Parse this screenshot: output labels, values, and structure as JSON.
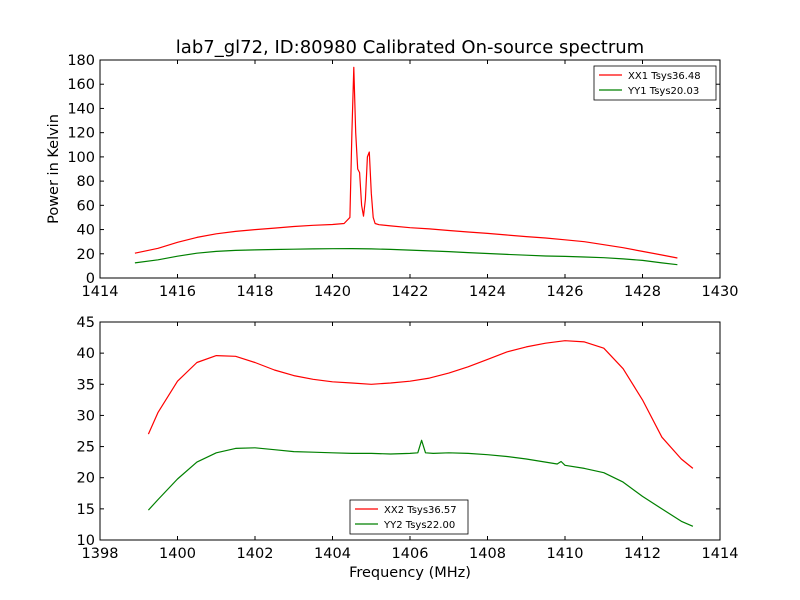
{
  "figure_title": "lab7_gl72, ID:80980 Calibrated On-source spectrum",
  "chart_data": [
    {
      "type": "line",
      "title": "lab7_gl72, ID:80980 Calibrated On-source spectrum",
      "xlabel": "",
      "ylabel": "Power in Kelvin",
      "xlim": [
        1414,
        1430
      ],
      "ylim": [
        0,
        180
      ],
      "xticks": [
        "1414",
        "1416",
        "1418",
        "1420",
        "1422",
        "1424",
        "1426",
        "1428",
        "1430"
      ],
      "yticks": [
        "0",
        "20",
        "40",
        "60",
        "80",
        "100",
        "120",
        "140",
        "160",
        "180"
      ],
      "grid": false,
      "legend_position": "top-right",
      "series": [
        {
          "name": "XX1 Tsys36.48",
          "color": "#ff0000",
          "x": [
            1414.9,
            1415.5,
            1416.0,
            1416.5,
            1417.0,
            1417.5,
            1418.0,
            1418.5,
            1419.0,
            1419.5,
            1420.0,
            1420.3,
            1420.45,
            1420.5,
            1420.55,
            1420.6,
            1420.65,
            1420.7,
            1420.75,
            1420.8,
            1420.85,
            1420.9,
            1420.95,
            1421.0,
            1421.05,
            1421.1,
            1421.2,
            1421.5,
            1422.0,
            1422.5,
            1423.0,
            1423.5,
            1424.0,
            1424.5,
            1425.0,
            1425.5,
            1426.0,
            1426.5,
            1427.0,
            1427.5,
            1428.0,
            1428.5,
            1428.9
          ],
          "y": [
            20.5,
            24.5,
            29.5,
            33.5,
            36.5,
            38.5,
            40.0,
            41.2,
            42.5,
            43.5,
            44.2,
            45.0,
            50.0,
            120.0,
            174.0,
            120.0,
            90.0,
            87.0,
            60.0,
            51.0,
            65.0,
            100.0,
            104.0,
            70.0,
            50.0,
            45.0,
            44.0,
            43.0,
            41.5,
            40.5,
            39.2,
            38.0,
            36.8,
            35.5,
            34.2,
            33.0,
            31.5,
            30.0,
            27.5,
            25.0,
            22.0,
            19.0,
            16.5
          ]
        },
        {
          "name": "YY1 Tsys20.03",
          "color": "#008000",
          "x": [
            1414.9,
            1415.5,
            1416.0,
            1416.5,
            1417.0,
            1417.5,
            1418.0,
            1418.5,
            1419.0,
            1419.5,
            1420.0,
            1420.5,
            1421.0,
            1421.5,
            1422.0,
            1422.5,
            1423.0,
            1423.5,
            1424.0,
            1424.5,
            1425.0,
            1425.5,
            1426.0,
            1426.5,
            1427.0,
            1427.5,
            1428.0,
            1428.5,
            1428.9
          ],
          "y": [
            12.5,
            15.0,
            18.0,
            20.5,
            22.0,
            22.8,
            23.2,
            23.5,
            23.8,
            24.0,
            24.2,
            24.3,
            24.0,
            23.6,
            23.0,
            22.4,
            21.8,
            21.0,
            20.2,
            19.5,
            18.8,
            18.2,
            17.8,
            17.3,
            16.8,
            15.8,
            14.5,
            12.5,
            11.0
          ]
        }
      ]
    },
    {
      "type": "line",
      "title": "",
      "xlabel": "Frequency (MHz)",
      "ylabel": "",
      "xlim": [
        1398,
        1414
      ],
      "ylim": [
        10,
        45
      ],
      "xticks": [
        "1398",
        "1400",
        "1402",
        "1404",
        "1406",
        "1408",
        "1410",
        "1412",
        "1414"
      ],
      "yticks": [
        "10",
        "15",
        "20",
        "25",
        "30",
        "35",
        "40",
        "45"
      ],
      "grid": false,
      "legend_position": "bottom-center",
      "series": [
        {
          "name": "XX2 Tsys36.57",
          "color": "#ff0000",
          "x": [
            1399.25,
            1399.5,
            1400.0,
            1400.5,
            1401.0,
            1401.5,
            1402.0,
            1402.5,
            1403.0,
            1403.5,
            1404.0,
            1404.5,
            1405.0,
            1405.5,
            1406.0,
            1406.5,
            1407.0,
            1407.5,
            1408.0,
            1408.5,
            1409.0,
            1409.5,
            1410.0,
            1410.5,
            1411.0,
            1411.5,
            1412.0,
            1412.5,
            1413.0,
            1413.3
          ],
          "y": [
            27.0,
            30.5,
            35.5,
            38.5,
            39.6,
            39.5,
            38.5,
            37.3,
            36.4,
            35.8,
            35.4,
            35.2,
            35.0,
            35.2,
            35.5,
            36.0,
            36.8,
            37.8,
            39.0,
            40.2,
            41.0,
            41.6,
            42.0,
            41.8,
            40.8,
            37.5,
            32.5,
            26.5,
            23.0,
            21.5
          ]
        },
        {
          "name": "YY2 Tsys22.00",
          "color": "#008000",
          "x": [
            1399.25,
            1399.5,
            1400.0,
            1400.5,
            1401.0,
            1401.5,
            1402.0,
            1402.5,
            1403.0,
            1403.5,
            1404.0,
            1404.5,
            1405.0,
            1405.5,
            1406.0,
            1406.2,
            1406.3,
            1406.4,
            1406.6,
            1407.0,
            1407.5,
            1408.0,
            1408.5,
            1409.0,
            1409.5,
            1409.8,
            1409.9,
            1410.0,
            1410.5,
            1411.0,
            1411.5,
            1412.0,
            1412.5,
            1413.0,
            1413.3
          ],
          "y": [
            14.8,
            16.5,
            19.8,
            22.5,
            24.0,
            24.7,
            24.8,
            24.5,
            24.2,
            24.1,
            24.0,
            23.9,
            23.9,
            23.8,
            23.9,
            24.0,
            26.0,
            24.0,
            23.9,
            24.0,
            23.9,
            23.7,
            23.4,
            23.0,
            22.5,
            22.2,
            22.6,
            22.0,
            21.5,
            20.8,
            19.3,
            17.0,
            15.0,
            13.0,
            12.2
          ]
        }
      ]
    }
  ]
}
